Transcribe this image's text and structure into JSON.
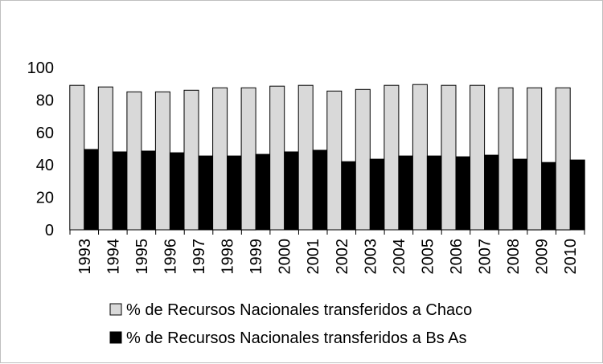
{
  "chart_data": {
    "type": "bar",
    "title": "",
    "xlabel": "",
    "ylabel": "",
    "ylim": [
      0,
      100
    ],
    "yticks": [
      0,
      20,
      40,
      60,
      80,
      100
    ],
    "grid": false,
    "legend_position": "bottom",
    "categories": [
      "1993",
      "1994",
      "1995",
      "1996",
      "1997",
      "1998",
      "1999",
      "2000",
      "2001",
      "2002",
      "2003",
      "2004",
      "2005",
      "2006",
      "2007",
      "2008",
      "2009",
      "2010"
    ],
    "series": [
      {
        "name": "% de Recursos Nacionales transferidos a Chaco",
        "color": "#d9d9d9",
        "values": [
          89,
          88,
          85,
          85,
          86,
          87.5,
          87.5,
          88.5,
          89,
          85.5,
          86.5,
          89,
          89.5,
          89,
          89,
          87.5,
          87.5,
          87.5
        ]
      },
      {
        "name": "% de Recursos Nacionales transferidos a Bs As",
        "color": "#000000",
        "values": [
          49.5,
          48,
          48.5,
          47.5,
          45.5,
          45.5,
          46.5,
          48,
          49,
          42,
          43.5,
          45.5,
          45.5,
          45,
          46,
          43.5,
          41.5,
          43
        ]
      }
    ]
  }
}
